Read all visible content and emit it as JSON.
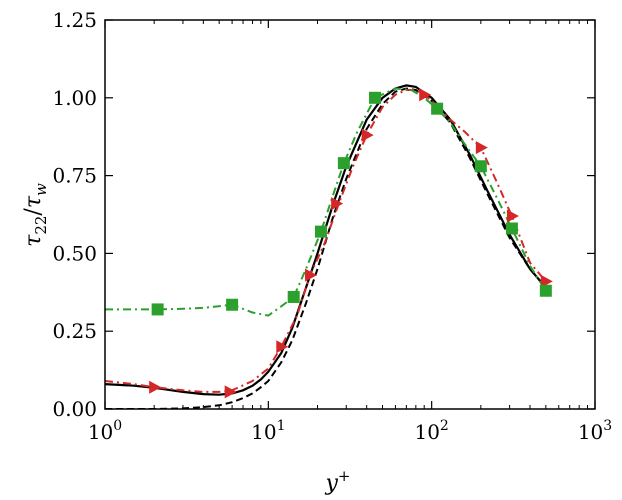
{
  "chart_data": {
    "type": "line",
    "xscale": "log",
    "xlim": [
      1,
      1000
    ],
    "ylim": [
      0,
      1.25
    ],
    "xlabel": {
      "base": "y",
      "sup": "+"
    },
    "ylabel": {
      "num": "τ",
      "num_sub": "22",
      "sep": "/",
      "den": "τ",
      "den_sub": "w"
    },
    "x_ticks": [
      {
        "value": 1,
        "base": "10",
        "exp": "0"
      },
      {
        "value": 10,
        "base": "10",
        "exp": "1"
      },
      {
        "value": 100,
        "base": "10",
        "exp": "2"
      },
      {
        "value": 1000,
        "base": "10",
        "exp": "3"
      }
    ],
    "y_ticks": [
      {
        "value": 0,
        "label": "0.00"
      },
      {
        "value": 0.25,
        "label": "0.25"
      },
      {
        "value": 0.5,
        "label": "0.50"
      },
      {
        "value": 0.75,
        "label": "0.75"
      },
      {
        "value": 1.0,
        "label": "1.00"
      },
      {
        "value": 1.25,
        "label": "1.25"
      }
    ],
    "grid": false,
    "legend": "none",
    "series": [
      {
        "color": "#000000",
        "dash": "solid",
        "marker": "none",
        "x": [
          1,
          1.5,
          2,
          3,
          4,
          5,
          6,
          7,
          8,
          9,
          10,
          12,
          14,
          17,
          20,
          25,
          30,
          40,
          50,
          60,
          70,
          80,
          100,
          130,
          170,
          220,
          300,
          400,
          500
        ],
        "y": [
          0.08,
          0.075,
          0.068,
          0.055,
          0.048,
          0.046,
          0.05,
          0.06,
          0.075,
          0.095,
          0.12,
          0.18,
          0.26,
          0.39,
          0.5,
          0.66,
          0.78,
          0.93,
          1.0,
          1.03,
          1.04,
          1.035,
          1.0,
          0.93,
          0.82,
          0.7,
          0.56,
          0.45,
          0.39
        ]
      },
      {
        "color": "#000000",
        "dash": "dashed",
        "marker": "none",
        "x": [
          1,
          2,
          3,
          4,
          5,
          6,
          7,
          8,
          9,
          10,
          12,
          14,
          17,
          20,
          25,
          30,
          40,
          50,
          60,
          70,
          80,
          100,
          130,
          170,
          220,
          300,
          400,
          500
        ],
        "y": [
          0.0,
          0.0,
          0.002,
          0.006,
          0.012,
          0.022,
          0.035,
          0.05,
          0.07,
          0.09,
          0.15,
          0.22,
          0.34,
          0.45,
          0.62,
          0.74,
          0.9,
          0.98,
          1.02,
          1.03,
          1.025,
          0.99,
          0.92,
          0.81,
          0.69,
          0.55,
          0.45,
          0.39
        ]
      },
      {
        "color": "#d62728",
        "dash": "dashdot",
        "marker": "triangle-right",
        "x": [
          1,
          1.5,
          2,
          3,
          4,
          5,
          6,
          8,
          10,
          12,
          15,
          18,
          22,
          27,
          33,
          40,
          50,
          60,
          70,
          80,
          90,
          100,
          130,
          160,
          200,
          250,
          310,
          400,
          500
        ],
        "y": [
          0.09,
          0.08,
          0.07,
          0.06,
          0.055,
          0.055,
          0.06,
          0.09,
          0.13,
          0.2,
          0.3,
          0.43,
          0.53,
          0.66,
          0.78,
          0.88,
          0.97,
          1.01,
          1.025,
          1.025,
          1.01,
          0.99,
          0.93,
          0.89,
          0.84,
          0.73,
          0.62,
          0.47,
          0.41
        ]
      },
      {
        "color": "#2ca02c",
        "dash": "dashdot",
        "marker": "square",
        "x": [
          1,
          1.5,
          2.1,
          3,
          4,
          6,
          8,
          10,
          12,
          14.3,
          17,
          21,
          25,
          29,
          35,
          45,
          60,
          75,
          90,
          108,
          130,
          160,
          200,
          250,
          310,
          400,
          500
        ],
        "y": [
          0.32,
          0.32,
          0.32,
          0.322,
          0.325,
          0.335,
          0.31,
          0.3,
          0.33,
          0.36,
          0.45,
          0.57,
          0.69,
          0.79,
          0.89,
          1.0,
          1.03,
          1.025,
          1.0,
          0.965,
          0.92,
          0.85,
          0.78,
          0.68,
          0.58,
          0.46,
          0.38
        ]
      }
    ],
    "marker_points": [
      [],
      [],
      {
        "x": [
          2,
          5.8,
          12,
          18,
          26,
          40,
          90,
          200,
          310,
          500
        ],
        "y": [
          0.07,
          0.055,
          0.2,
          0.43,
          0.66,
          0.88,
          1.01,
          0.84,
          0.62,
          0.41
        ]
      },
      {
        "x": [
          2.1,
          6,
          14.3,
          21,
          29,
          45,
          108,
          200,
          310,
          500
        ],
        "y": [
          0.32,
          0.335,
          0.36,
          0.57,
          0.79,
          1.0,
          0.965,
          0.78,
          0.58,
          0.38
        ]
      }
    ]
  }
}
